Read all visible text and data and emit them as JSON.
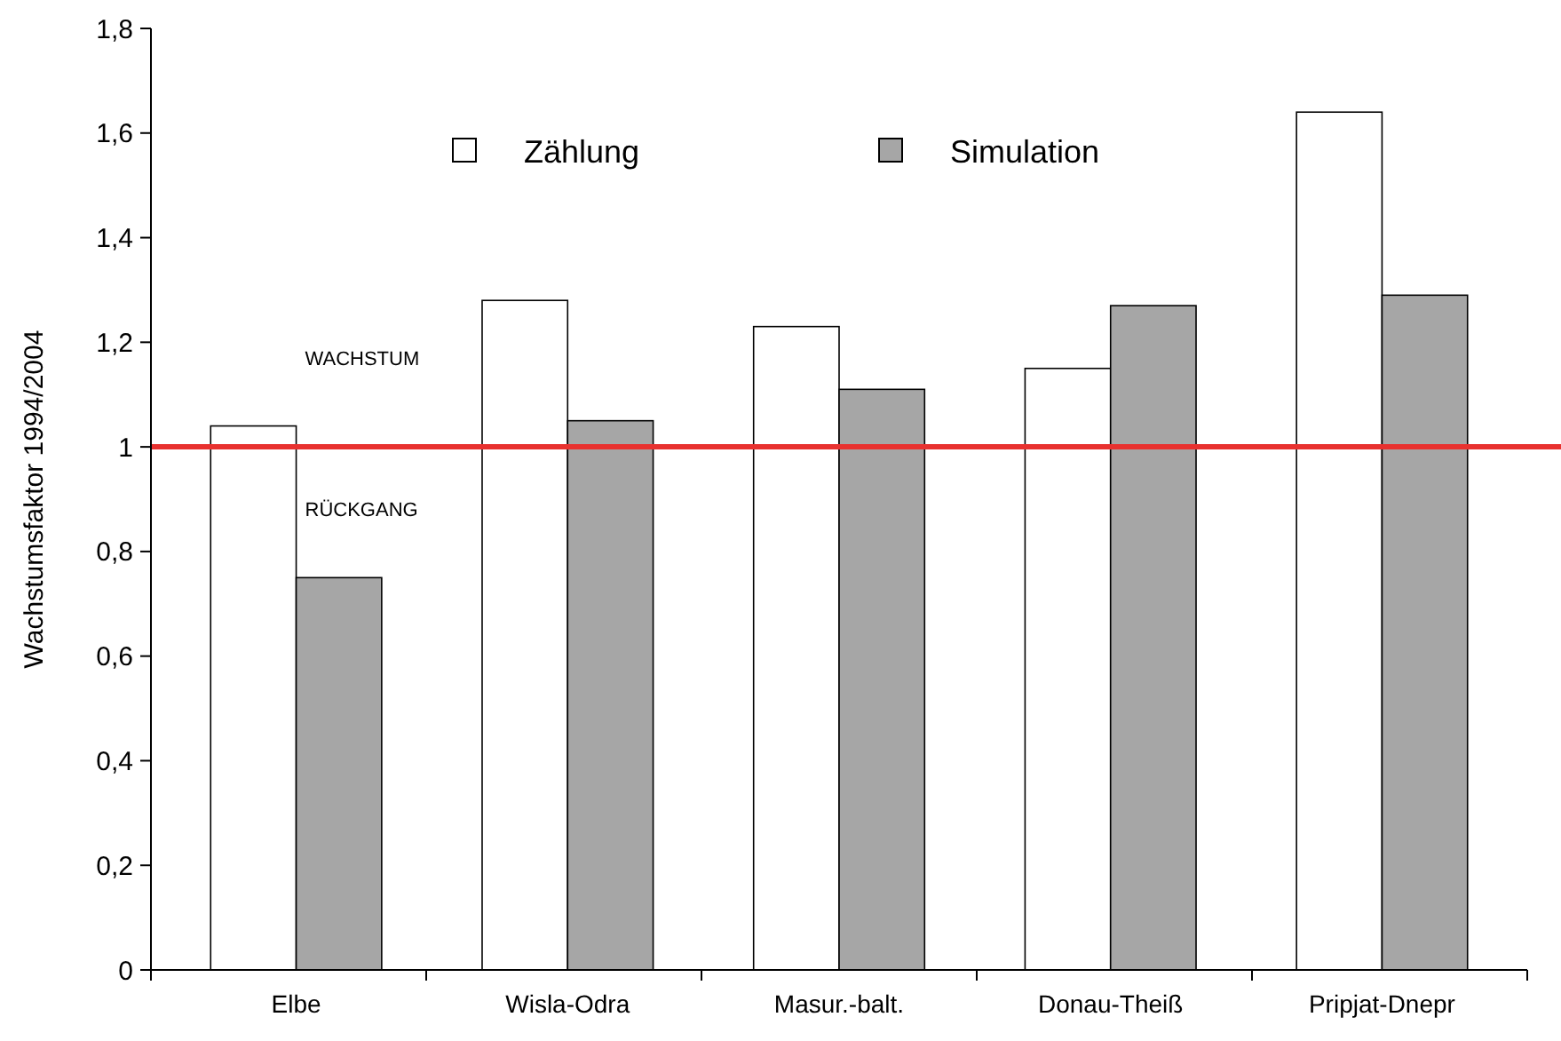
{
  "chart_data": {
    "type": "bar",
    "ylabel": "Wachstumsfaktor 1994/2004",
    "categories": [
      "Elbe",
      "Wisla-Odra",
      "Masur.-balt.",
      "Donau-Theiß",
      "Pripjat-Dnepr"
    ],
    "series": [
      {
        "name": "Zählung",
        "color": "#ffffff",
        "values": [
          1.04,
          1.28,
          1.23,
          1.15,
          1.64
        ]
      },
      {
        "name": "Simulation",
        "color": "#a6a6a6",
        "values": [
          0.75,
          1.05,
          1.11,
          1.27,
          1.29
        ]
      }
    ],
    "ylim": [
      0,
      1.8
    ],
    "yticks": [
      0,
      {
        "value": 0.2,
        "label": "0,2"
      },
      {
        "value": 0.4,
        "label": "0,4"
      },
      {
        "value": 0.6,
        "label": "0,6"
      },
      {
        "value": 0.8,
        "label": "0,8"
      },
      1,
      {
        "value": 1.2,
        "label": "1,2"
      },
      {
        "value": 1.4,
        "label": "1,4"
      },
      {
        "value": 1.6,
        "label": "1,6"
      },
      {
        "value": 1.8,
        "label": "1,8"
      }
    ],
    "ref_lines": [
      {
        "axis": "y",
        "value": 1,
        "color": "#e8312f"
      }
    ],
    "annotations": [
      "WACHSTUM",
      "RÜCKGANG"
    ],
    "legend": "top",
    "grid": false
  }
}
